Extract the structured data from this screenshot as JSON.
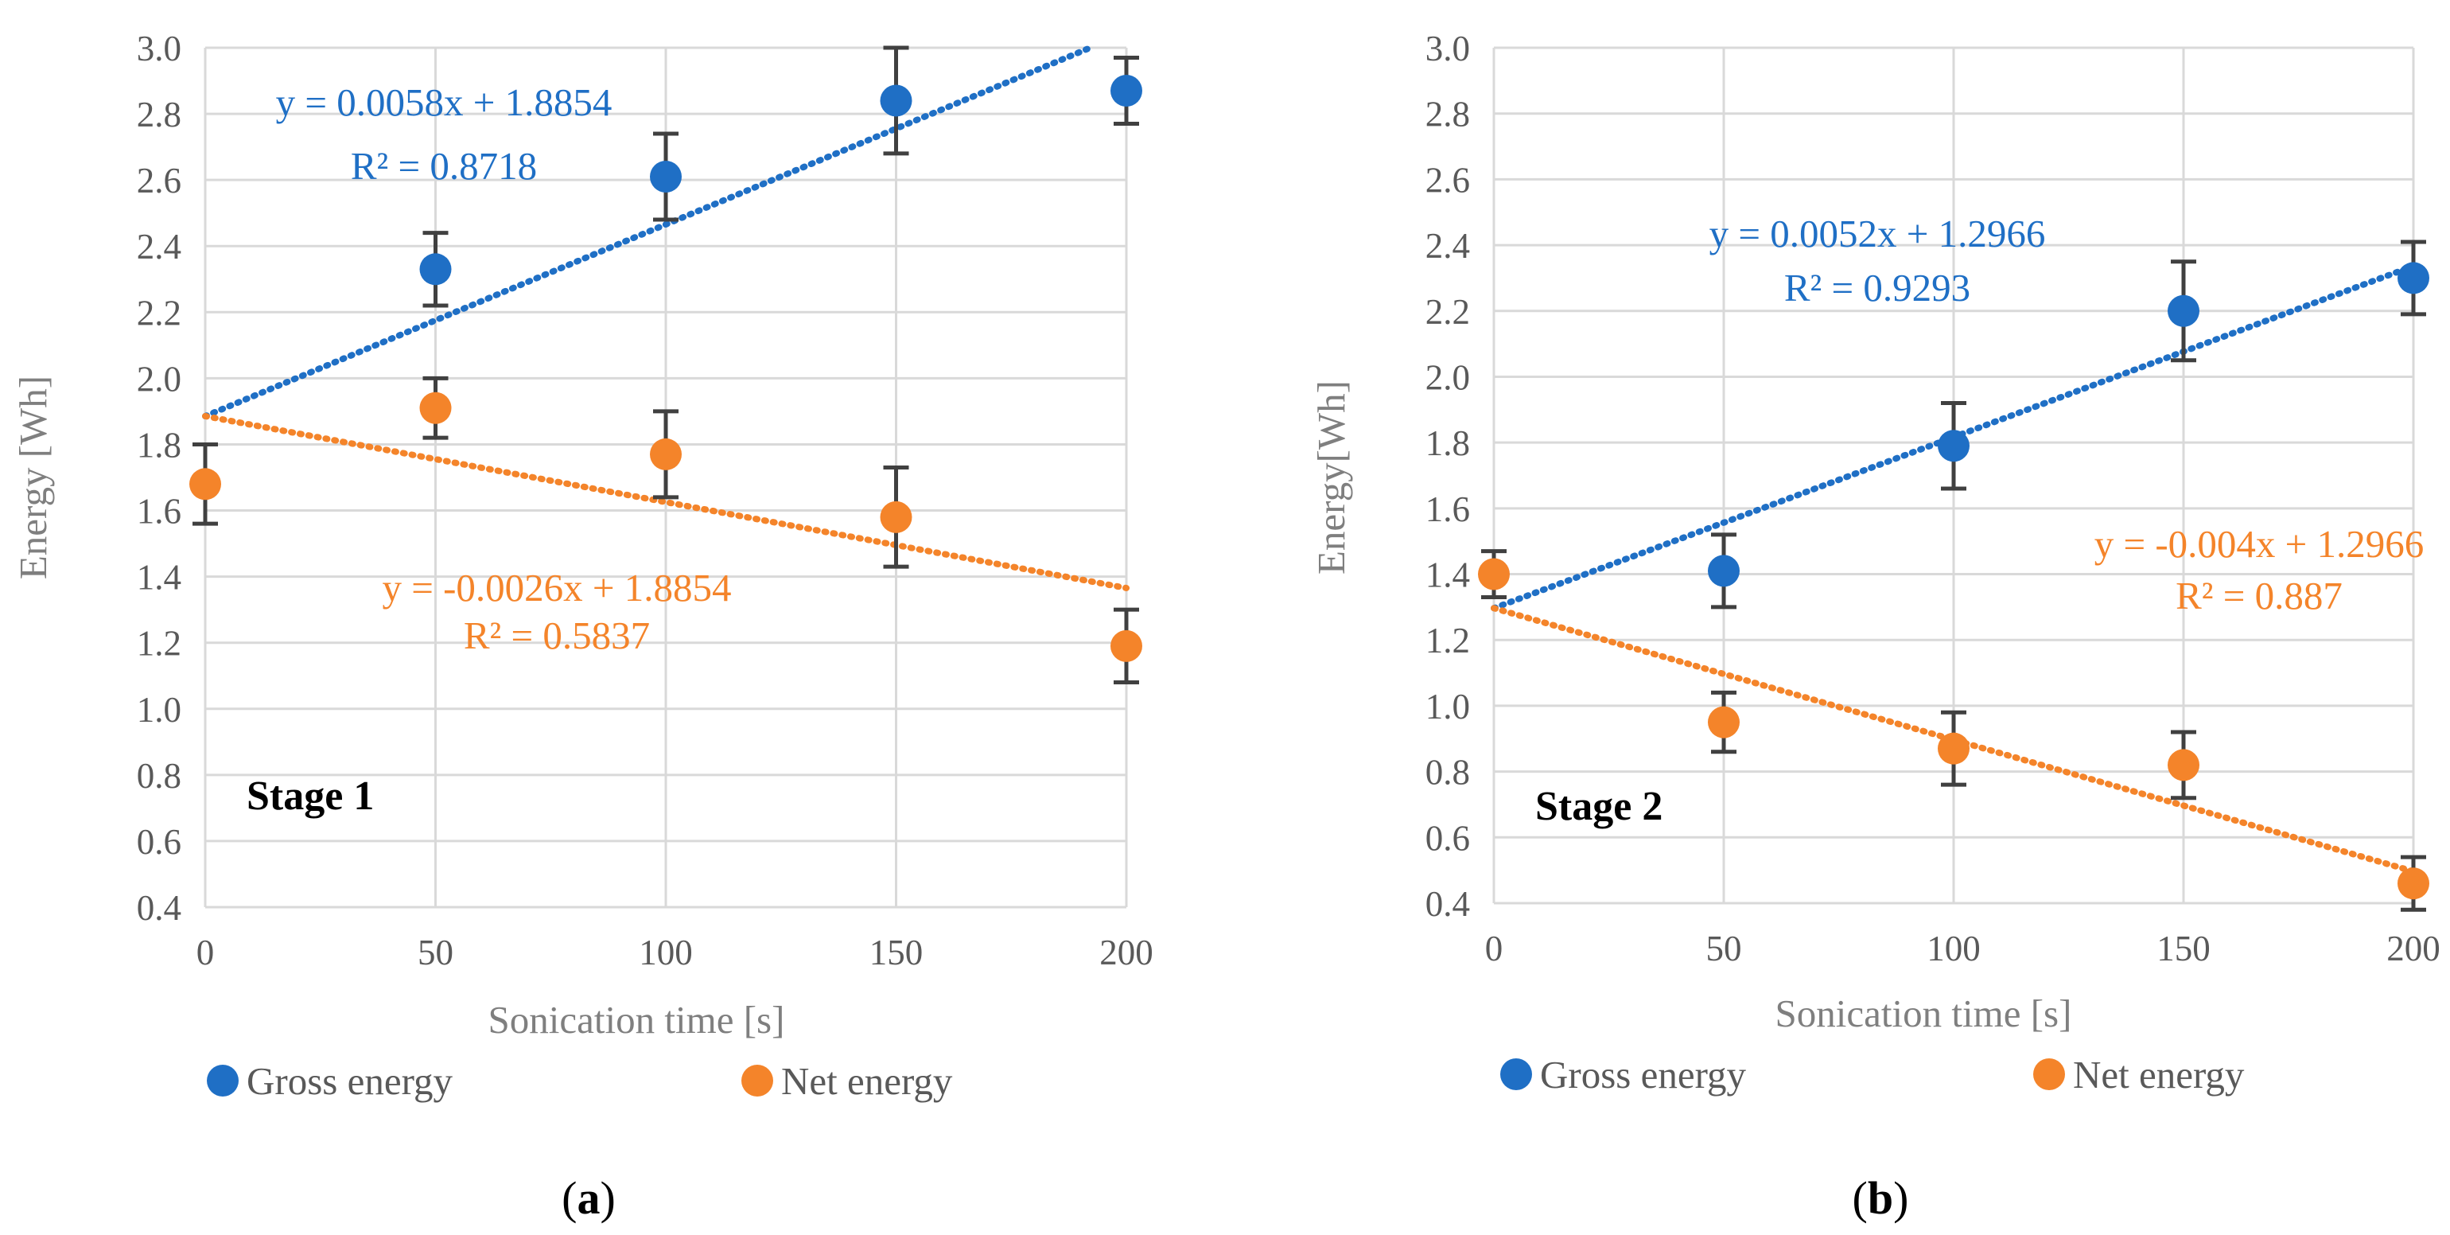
{
  "chart_data": [
    {
      "type": "scatter",
      "panel_label": "(a)",
      "annotation": "Stage 1",
      "xlabel": "Sonication time [s]",
      "ylabel": "Energy [Wh]",
      "xlim": [
        0,
        200
      ],
      "ylim": [
        0.4,
        3.0
      ],
      "xticks": [
        "0",
        "50",
        "100",
        "150",
        "200"
      ],
      "yticks": [
        "0.4",
        "0.6",
        "0.8",
        "1.0",
        "1.2",
        "1.4",
        "1.6",
        "1.8",
        "2.0",
        "2.2",
        "2.4",
        "2.6",
        "2.8",
        "3.0"
      ],
      "grid": true,
      "legend_position": "bottom",
      "series": [
        {
          "name": "Gross energy",
          "color": "#1f6fc5",
          "x": [
            50,
            100,
            150,
            200
          ],
          "y": [
            2.33,
            2.61,
            2.84,
            2.87
          ],
          "error": [
            0.11,
            0.13,
            0.16,
            0.1
          ],
          "trend": {
            "slope": 0.0058,
            "intercept": 1.8854,
            "x_range": [
              0,
              200
            ],
            "equation": "y = 0.0058x + 1.8854",
            "r2": "R² = 0.8718"
          }
        },
        {
          "name": "Net energy",
          "color": "#f4842a",
          "x": [
            0,
            50,
            100,
            150,
            200
          ],
          "y": [
            1.68,
            1.91,
            1.77,
            1.58,
            1.19
          ],
          "error": [
            0.12,
            0.09,
            0.13,
            0.15,
            0.11
          ],
          "trend": {
            "slope": -0.0026,
            "intercept": 1.8854,
            "x_range": [
              0,
              200
            ],
            "equation": "y = -0.0026x + 1.8854",
            "r2": "R² = 0.5837"
          }
        }
      ]
    },
    {
      "type": "scatter",
      "panel_label": "(b)",
      "annotation": "Stage 2",
      "xlabel": "Sonication time [s]",
      "ylabel": "Energy[Wh]",
      "xlim": [
        0,
        200
      ],
      "ylim": [
        0.4,
        3.0
      ],
      "xticks": [
        "0",
        "50",
        "100",
        "150",
        "200"
      ],
      "yticks": [
        "0.4",
        "0.6",
        "0.8",
        "1.0",
        "1.2",
        "1.4",
        "1.6",
        "1.8",
        "2.0",
        "2.2",
        "2.4",
        "2.6",
        "2.8",
        "3.0"
      ],
      "grid": true,
      "legend_position": "bottom",
      "series": [
        {
          "name": "Gross energy",
          "color": "#1f6fc5",
          "x": [
            50,
            100,
            150,
            200
          ],
          "y": [
            1.41,
            1.79,
            2.2,
            2.3
          ],
          "error": [
            0.11,
            0.13,
            0.15,
            0.11
          ],
          "trend": {
            "slope": 0.0052,
            "intercept": 1.2966,
            "x_range": [
              0,
              200
            ],
            "equation": "y = 0.0052x + 1.2966",
            "r2": "R² = 0.9293"
          }
        },
        {
          "name": "Net energy",
          "color": "#f4842a",
          "x": [
            0,
            50,
            100,
            150,
            200
          ],
          "y": [
            1.4,
            0.95,
            0.87,
            0.82,
            0.46
          ],
          "error": [
            0.07,
            0.09,
            0.11,
            0.1,
            0.08
          ],
          "trend": {
            "slope": -0.004,
            "intercept": 1.2966,
            "x_range": [
              0,
              200
            ],
            "equation": "y = -0.004x + 1.2966",
            "r2": "R² = 0.887"
          }
        }
      ]
    }
  ]
}
